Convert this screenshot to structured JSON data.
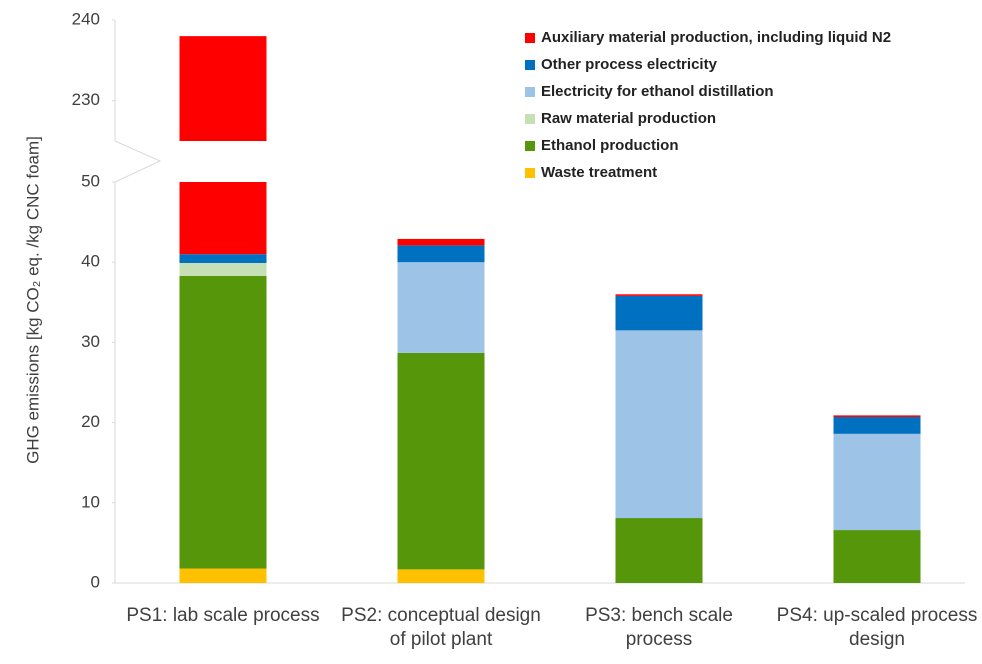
{
  "chart_data": {
    "type": "stacked_bar",
    "y_label": "GHG emissions [kg CO₂ eq. /kg CNC foam]",
    "categories": [
      "PS1: lab scale process",
      "PS2: conceptual design of pilot plant",
      "PS3: bench scale process",
      "PS4: up-scaled process design"
    ],
    "series": [
      {
        "name": "Waste treatment",
        "color": "#ffc000",
        "values": [
          1.8,
          1.7,
          0,
          0
        ]
      },
      {
        "name": "Ethanol production",
        "color": "#55960a",
        "values": [
          36.5,
          27,
          8.1,
          6.6
        ]
      },
      {
        "name": "Raw material production",
        "color": "#c5e0b4",
        "values": [
          1.6,
          0,
          0,
          0
        ]
      },
      {
        "name": "Electricity for ethanol distillation",
        "color": "#9dc3e6",
        "values": [
          0,
          11.3,
          23.4,
          12.0
        ]
      },
      {
        "name": "Other process electricity",
        "color": "#0070c0",
        "values": [
          1.1,
          2.1,
          4.3,
          2.1
        ]
      },
      {
        "name": "Auxiliary material production, including liquid N2",
        "color": "#ff0000",
        "values": [
          197,
          0.8,
          0.2,
          0.2
        ]
      }
    ],
    "ylim": [
      0,
      240
    ],
    "y_break": [
      50,
      225
    ],
    "yticks": [
      0,
      10,
      20,
      30,
      40,
      50,
      230,
      240
    ]
  }
}
